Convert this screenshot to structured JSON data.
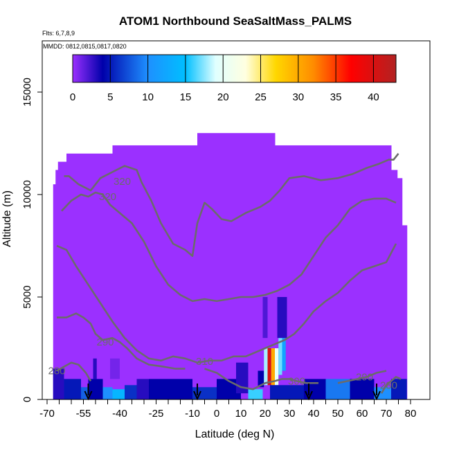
{
  "chart_data": {
    "type": "heatmap",
    "title": "ATOM1 Northbound SeaSaltMass_PALMS",
    "notes": [
      "Flts: 6,7,8,9",
      "MMDD: 0812,0815,0817,0820"
    ],
    "xlabel": "Latitude (deg N)",
    "ylabel": "Altitude (m)",
    "xlim": [
      -72,
      88
    ],
    "ylim": [
      0,
      17500
    ],
    "x_ticks": [
      -70,
      -55,
      -40,
      -25,
      -10,
      0,
      10,
      20,
      30,
      40,
      50,
      60,
      70,
      80
    ],
    "x_tick_labels": [
      "-70",
      "-55",
      "-40",
      "-25",
      "-10",
      "0",
      "10",
      "20",
      "30",
      "40",
      "50",
      "60",
      "70",
      "80"
    ],
    "x_minor_ticks": [
      -65,
      -60,
      -50,
      -45,
      -35,
      -30,
      -20,
      -15,
      -5,
      5,
      15,
      25,
      35,
      45,
      55,
      65,
      75
    ],
    "y_ticks": [
      0,
      5000,
      10000,
      15000
    ],
    "y_tick_labels": [
      "0",
      "5000",
      "10000",
      "15000"
    ],
    "colorbar": {
      "range": [
        0,
        43
      ],
      "ticks": [
        0,
        5,
        10,
        15,
        20,
        25,
        30,
        35,
        40
      ],
      "tick_labels": [
        "0",
        "5",
        "10",
        "15",
        "20",
        "25",
        "30",
        "35",
        "40"
      ],
      "color_stops": [
        {
          "value": 0,
          "color": "#9b30ff"
        },
        {
          "value": 4,
          "color": "#0000aa"
        },
        {
          "value": 10,
          "color": "#1e90ff"
        },
        {
          "value": 15,
          "color": "#00bfff"
        },
        {
          "value": 19,
          "color": "#e0ffff"
        },
        {
          "value": 23,
          "color": "#ffffe0"
        },
        {
          "value": 27,
          "color": "#ffd700"
        },
        {
          "value": 32,
          "color": "#ff8c00"
        },
        {
          "value": 37,
          "color": "#ff0000"
        },
        {
          "value": 43,
          "color": "#b22222"
        }
      ]
    },
    "coverage_columns": [
      {
        "x0": -67.5,
        "x1": -66.5,
        "top": 10500
      },
      {
        "x0": -66.5,
        "x1": -65.5,
        "top": 11200
      },
      {
        "x0": -65.5,
        "x1": -62,
        "top": 11600
      },
      {
        "x0": -62,
        "x1": -43,
        "top": 12000
      },
      {
        "x0": -43,
        "x1": -8,
        "top": 12400
      },
      {
        "x0": -8,
        "x1": 24,
        "top": 13000
      },
      {
        "x0": 24,
        "x1": 47,
        "top": 12400
      },
      {
        "x0": 47,
        "x1": 72,
        "top": 12400
      },
      {
        "x0": 72,
        "x1": 74.5,
        "top": 11200
      },
      {
        "x0": 74.5,
        "x1": 76.5,
        "top": 10800
      },
      {
        "x0": 76.5,
        "x1": 78.5,
        "top": 8500
      }
    ],
    "cells": [
      {
        "x0": -67.5,
        "x1": -63,
        "y0": 0,
        "y1": 1500,
        "value": 3
      },
      {
        "x0": -63,
        "x1": -56,
        "y0": 0,
        "y1": 1000,
        "value": 5
      },
      {
        "x0": -56,
        "x1": -53,
        "y0": 0,
        "y1": 600,
        "value": 8
      },
      {
        "x0": -53,
        "x1": -47,
        "y0": 0,
        "y1": 1000,
        "value": 4
      },
      {
        "x0": -47,
        "x1": -43,
        "y0": 0,
        "y1": 600,
        "value": 10
      },
      {
        "x0": -43,
        "x1": -38,
        "y0": 0,
        "y1": 500,
        "value": 14
      },
      {
        "x0": -38,
        "x1": -33,
        "y0": 0,
        "y1": 700,
        "value": 6
      },
      {
        "x0": -33,
        "x1": -28,
        "y0": 0,
        "y1": 1000,
        "value": 3
      },
      {
        "x0": -51,
        "x1": -49.5,
        "y0": 1000,
        "y1": 2000,
        "value": 3
      },
      {
        "x0": -44,
        "x1": -40,
        "y0": 1000,
        "y1": 2000,
        "value": 1
      },
      {
        "x0": -28,
        "x1": -10,
        "y0": 0,
        "y1": 1000,
        "value": 4
      },
      {
        "x0": -10,
        "x1": 0,
        "y0": 0,
        "y1": 600,
        "value": 6
      },
      {
        "x0": 0,
        "x1": 10,
        "y0": 0,
        "y1": 1000,
        "value": 4
      },
      {
        "x0": 8,
        "x1": 13,
        "y0": 300,
        "y1": 1800,
        "value": 3
      },
      {
        "x0": 13,
        "x1": 19,
        "y0": 0,
        "y1": 500,
        "value": 16
      },
      {
        "x0": 17,
        "x1": 19.5,
        "y0": 600,
        "y1": 1400,
        "value": 4
      },
      {
        "x0": 19.5,
        "x1": 21,
        "y0": 700,
        "y1": 2500,
        "value": 18
      },
      {
        "x0": 21,
        "x1": 22.5,
        "y0": 700,
        "y1": 2500,
        "value": 40
      },
      {
        "x0": 22.5,
        "x1": 24,
        "y0": 700,
        "y1": 2500,
        "value": 30
      },
      {
        "x0": 24,
        "x1": 25.5,
        "y0": 700,
        "y1": 2500,
        "value": 20
      },
      {
        "x0": 25.5,
        "x1": 27,
        "y0": 1200,
        "y1": 3000,
        "value": 17
      },
      {
        "x0": 27,
        "x1": 28.5,
        "y0": 1400,
        "y1": 3000,
        "value": 12
      },
      {
        "x0": 25,
        "x1": 29,
        "y0": 3000,
        "y1": 5000,
        "value": 3
      },
      {
        "x0": 19,
        "x1": 21,
        "y0": 3000,
        "y1": 5000,
        "value": 2
      },
      {
        "x0": 22,
        "x1": 36,
        "y0": 0,
        "y1": 700,
        "value": 5
      },
      {
        "x0": 36,
        "x1": 45,
        "y0": 0,
        "y1": 1000,
        "value": 4
      },
      {
        "x0": 45,
        "x1": 55,
        "y0": 0,
        "y1": 1000,
        "value": 9
      },
      {
        "x0": 55,
        "x1": 65,
        "y0": 0,
        "y1": 1000,
        "value": 4
      },
      {
        "x0": 65,
        "x1": 72,
        "y0": 0,
        "y1": 600,
        "value": 10
      },
      {
        "x0": 72,
        "x1": 78.5,
        "y0": 0,
        "y1": 1000,
        "value": 5
      }
    ],
    "contours": [
      {
        "label": "320",
        "points": [
          [
            -63,
            10900
          ],
          [
            -61,
            10900
          ],
          [
            -57,
            10500
          ],
          [
            -52,
            10200
          ],
          [
            -48,
            10800
          ],
          [
            -43,
            11100
          ],
          [
            -38,
            11400
          ],
          [
            -33,
            11200
          ],
          [
            -31,
            10600
          ],
          [
            -27,
            9700
          ],
          [
            -23,
            8600
          ],
          [
            -18,
            7600
          ],
          [
            -13,
            7300
          ],
          [
            -10,
            7000
          ],
          [
            -8,
            8600
          ],
          [
            -5,
            9600
          ],
          [
            -2,
            9300
          ],
          [
            2,
            8800
          ],
          [
            6,
            8700
          ],
          [
            12,
            9100
          ],
          [
            18,
            9400
          ],
          [
            22,
            9700
          ],
          [
            26,
            10200
          ],
          [
            30,
            10800
          ],
          [
            36,
            10900
          ],
          [
            43,
            10700
          ],
          [
            50,
            10800
          ],
          [
            56,
            11000
          ],
          [
            62,
            11300
          ],
          [
            67,
            11500
          ],
          [
            71,
            11700
          ],
          [
            73,
            11700
          ],
          [
            75,
            12000
          ]
        ],
        "label_at": [
          -39,
          10650
        ]
      },
      {
        "label": "320",
        "points": [
          [
            -64,
            9200
          ],
          [
            -60,
            9700
          ],
          [
            -56,
            10000
          ],
          [
            -53,
            9900
          ],
          [
            -50,
            10100
          ],
          [
            -47,
            10000
          ],
          [
            -44,
            9500
          ],
          [
            -39,
            9000
          ],
          [
            -35,
            8600
          ],
          [
            -30,
            7700
          ],
          [
            -25,
            6500
          ],
          [
            -20,
            5600
          ],
          [
            -15,
            5100
          ],
          [
            -10,
            4800
          ],
          [
            -5,
            4900
          ],
          [
            0,
            4800
          ],
          [
            5,
            4900
          ],
          [
            10,
            5000
          ],
          [
            15,
            5000
          ],
          [
            20,
            5100
          ],
          [
            25,
            5300
          ],
          [
            30,
            5600
          ],
          [
            35,
            6100
          ],
          [
            40,
            7000
          ],
          [
            45,
            7900
          ],
          [
            50,
            8500
          ],
          [
            55,
            9300
          ],
          [
            60,
            9700
          ],
          [
            65,
            9800
          ],
          [
            70,
            9800
          ],
          [
            74,
            9600
          ]
        ],
        "label_at": [
          -45,
          9900
        ]
      },
      {
        "label": "310",
        "points": [
          [
            -66,
            7500
          ],
          [
            -62,
            7300
          ],
          [
            -58,
            6500
          ],
          [
            -53,
            5600
          ],
          [
            -48,
            4700
          ],
          [
            -43,
            3800
          ],
          [
            -38,
            3000
          ],
          [
            -33,
            2400
          ],
          [
            -28,
            2000
          ],
          [
            -23,
            1900
          ],
          [
            -18,
            2100
          ],
          [
            -13,
            2000
          ],
          [
            -8,
            1800
          ],
          [
            -3,
            1900
          ],
          [
            2,
            1900
          ],
          [
            7,
            2100
          ],
          [
            12,
            2100
          ],
          [
            16,
            2300
          ],
          [
            20,
            2500
          ],
          [
            24,
            2700
          ],
          [
            28,
            2900
          ],
          [
            32,
            3200
          ],
          [
            36,
            3700
          ],
          [
            40,
            4300
          ],
          [
            45,
            4800
          ],
          [
            50,
            5200
          ],
          [
            55,
            5800
          ],
          [
            60,
            6300
          ],
          [
            65,
            6500
          ],
          [
            70,
            6700
          ],
          [
            74,
            7600
          ]
        ],
        "label_at": [
          -5,
          1850
        ]
      },
      {
        "label": "290",
        "points": [
          [
            -66,
            4000
          ],
          [
            -62,
            4000
          ],
          [
            -58,
            4200
          ],
          [
            -55,
            4000
          ],
          [
            -52,
            3700
          ],
          [
            -50,
            3200
          ],
          [
            -47,
            2900
          ],
          [
            -43,
            3000
          ],
          [
            -40,
            2800
          ],
          [
            -37,
            2500
          ],
          [
            -33,
            2000
          ],
          [
            -28,
            1700
          ],
          [
            -22,
            1600
          ],
          [
            -17,
            1500
          ],
          [
            -13,
            1500
          ]
        ],
        "label_at": [
          -46,
          2800
        ]
      },
      {
        "label": "280",
        "points": [
          [
            -66,
            1400
          ],
          [
            -63,
            1600
          ],
          [
            -60,
            1800
          ],
          [
            -57,
            1700
          ],
          [
            -54,
            1300
          ],
          [
            -52,
            900
          ]
        ],
        "label_at": [
          -66,
          1400
        ]
      },
      {
        "label": "300",
        "points": [
          [
            -5,
            1500
          ],
          [
            0,
            1300
          ],
          [
            5,
            900
          ],
          [
            10,
            600
          ],
          [
            15,
            500
          ],
          [
            20,
            800
          ],
          [
            24,
            900
          ],
          [
            27,
            1000
          ],
          [
            30,
            1000
          ],
          [
            33,
            900
          ],
          [
            37,
            800
          ],
          [
            42,
            800
          ]
        ],
        "label_at": [
          33,
          900
        ]
      },
      {
        "label": "290",
        "points": [
          [
            50,
            800
          ],
          [
            54,
            900
          ],
          [
            58,
            1000
          ],
          [
            62,
            1100
          ],
          [
            66,
            1300
          ],
          [
            70,
            1400
          ]
        ],
        "label_at": [
          61,
          1100
        ]
      },
      {
        "label": "280",
        "points": [
          [
            68,
            300
          ],
          [
            70,
            700
          ],
          [
            72,
            900
          ],
          [
            74,
            1100
          ],
          [
            76,
            1000
          ]
        ],
        "label_at": [
          71,
          700
        ]
      }
    ],
    "arrows": [
      -53,
      -8,
      38,
      66
    ]
  }
}
